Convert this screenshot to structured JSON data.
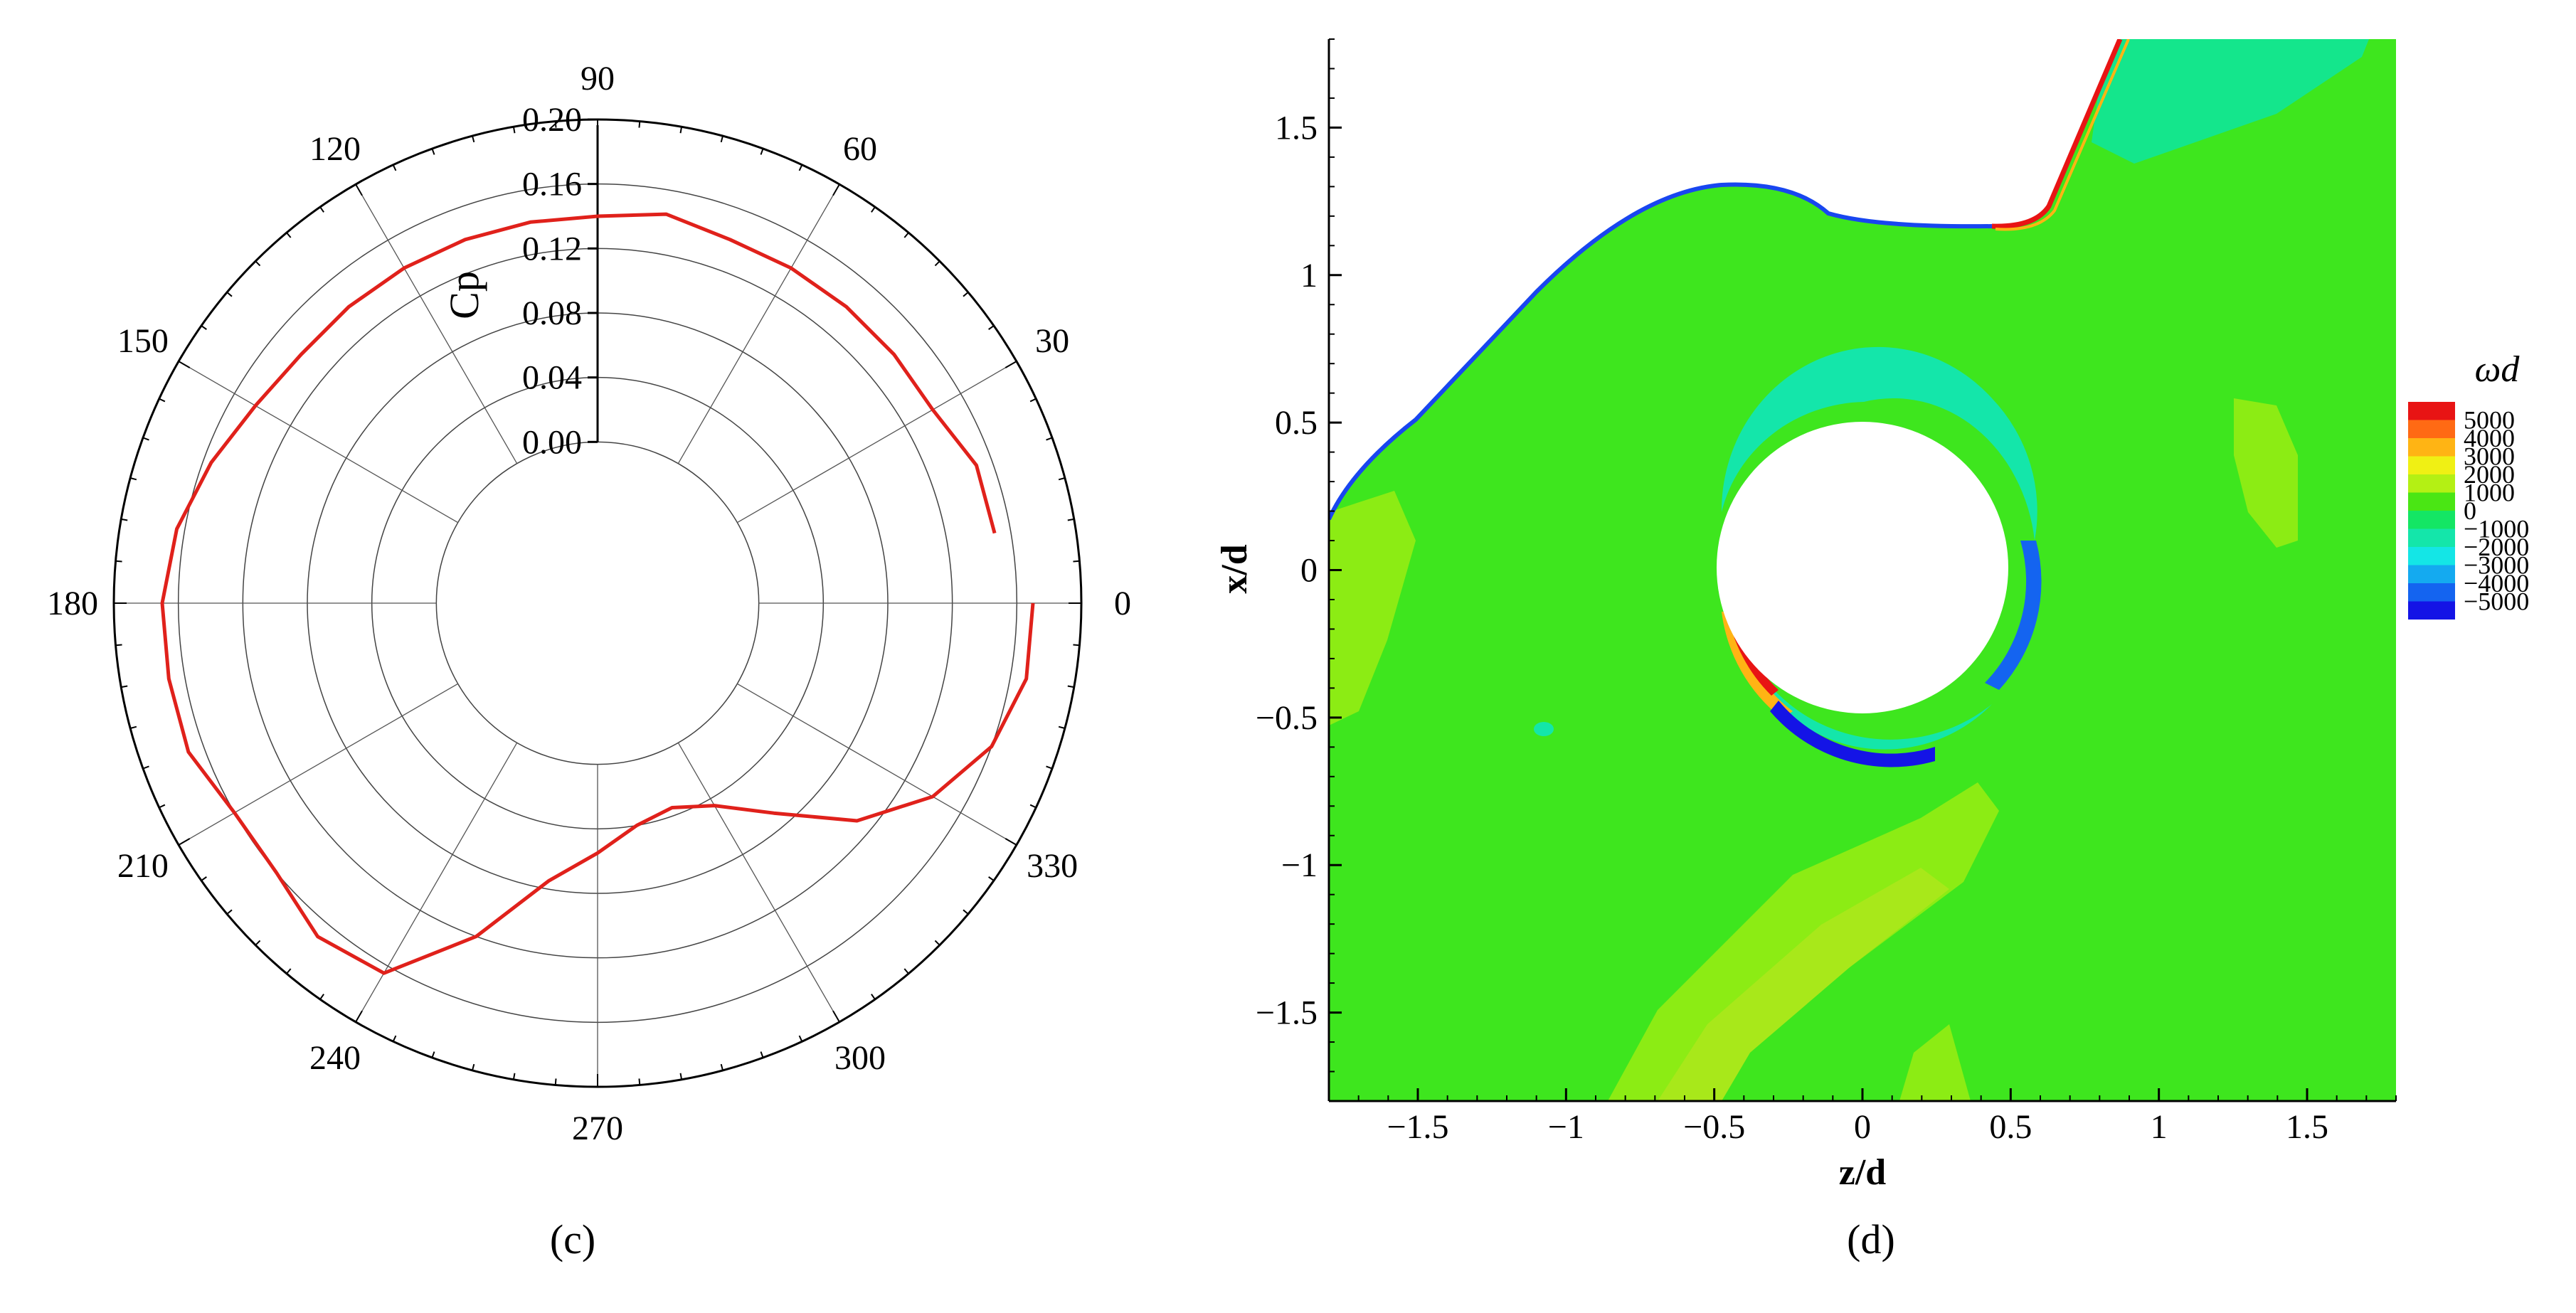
{
  "panels": [
    {
      "label": "(c)",
      "letter": "c"
    },
    {
      "label": "(d)",
      "letter": "d"
    }
  ],
  "chart_data": [
    {
      "type": "polar-line",
      "panel": "c",
      "title": "",
      "radial_label": "Cp",
      "radial_ticks": [
        "0.00",
        "0.04",
        "0.08",
        "0.12",
        "0.16",
        "0.20"
      ],
      "rlim": [
        -0.1,
        0.2
      ],
      "angle_ticks": [
        "0",
        "30",
        "60",
        "90",
        "120",
        "150",
        "180",
        "210",
        "240",
        "270",
        "300",
        "330"
      ],
      "grid": true,
      "series": [
        {
          "color": "#e0211b",
          "theta": [
            10,
            20,
            30,
            40,
            50,
            60,
            70,
            80,
            90,
            100,
            110,
            120,
            130,
            140,
            150,
            160,
            170,
            180,
            190,
            200,
            210,
            220,
            230,
            240,
            250,
            260,
            270,
            280,
            290,
            300,
            310,
            320,
            330,
            340,
            350,
            0
          ],
          "r": [
            0.15,
            0.15,
            0.14,
            0.14,
            0.14,
            0.14,
            0.14,
            0.145,
            0.14,
            0.14,
            0.14,
            0.14,
            0.14,
            0.14,
            0.145,
            0.155,
            0.165,
            0.17,
            0.17,
            0.17,
            0.16,
            0.16,
            0.17,
            0.165,
            0.12,
            0.075,
            0.055,
            0.04,
            0.035,
            0.045,
            0.07,
            0.11,
            0.14,
            0.16,
            0.17,
            0.17
          ]
        }
      ]
    },
    {
      "type": "heatmap",
      "panel": "d",
      "title": "",
      "xlabel": "z/d",
      "ylabel": "x/d",
      "xlim": [
        -1.8,
        1.8
      ],
      "ylim": [
        -1.8,
        1.8
      ],
      "x_ticks": [
        "−1.5",
        "−1",
        "−0.5",
        "0",
        "0.5",
        "1",
        "1.5"
      ],
      "y_ticks": [
        "1.5",
        "1",
        "0.5",
        "0",
        "−0.5",
        "−1",
        "−1.5"
      ],
      "colorbar": {
        "title": "ωd",
        "levels": [
          "5000",
          "4000",
          "3000",
          "2000",
          "1000",
          "0",
          "−1000",
          "−2000",
          "−3000",
          "−4000",
          "−5000"
        ],
        "colors": [
          "#e81414",
          "#ff6a14",
          "#ffb414",
          "#f0f014",
          "#b4f014",
          "#4ae614",
          "#14e664",
          "#14e6aa",
          "#14e6e6",
          "#14aaf0",
          "#1464f0",
          "#1414e6"
        ]
      },
      "cylinder": {
        "center": [
          0,
          0
        ],
        "radius": 0.5
      },
      "background_color": "#3ee61e"
    }
  ]
}
